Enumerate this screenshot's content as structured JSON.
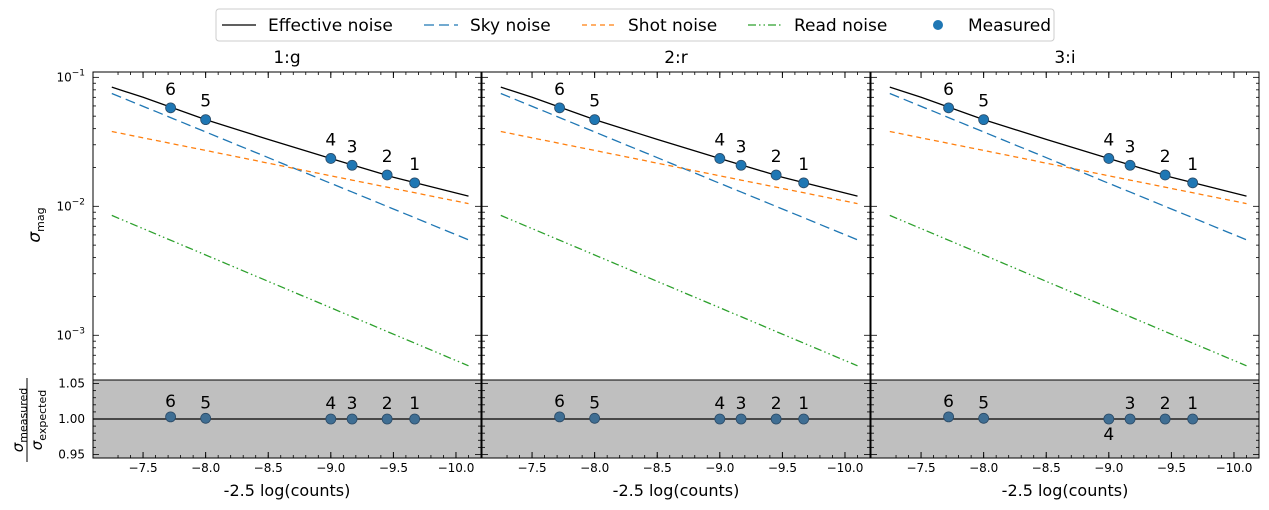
{
  "legend": {
    "placement": "top-center",
    "entries": [
      {
        "label": "Effective noise",
        "color": "#000000",
        "style": "solid"
      },
      {
        "label": "Sky noise",
        "color": "#1f77b4",
        "style": "dashed"
      },
      {
        "label": "Shot noise",
        "color": "#ff7f0e",
        "style": "short-dashed"
      },
      {
        "label": "Read noise",
        "color": "#2ca02c",
        "style": "dash-dot-dot"
      },
      {
        "label": "Measured",
        "color": "#1f77b4",
        "style": "marker"
      }
    ]
  },
  "xlabel": "-2.5 log(counts)",
  "top_ylabel": "σ",
  "top_ylabel_sub": "mag",
  "bottom_ylabel_num": "σ",
  "bottom_ylabel_num_sub": "measured",
  "bottom_ylabel_den": "σ",
  "bottom_ylabel_den_sub": "expected",
  "panels": [
    {
      "title": "1:g",
      "labels_below": []
    },
    {
      "title": "2:r",
      "labels_below": []
    },
    {
      "title": "3:i",
      "labels_below": [
        "4"
      ]
    }
  ],
  "chart_data": {
    "type": "line",
    "x_axis": {
      "ticks": [
        -7.5,
        -8.0,
        -8.5,
        -9.0,
        -9.5,
        -10.0
      ],
      "tick_labels": [
        "−7.5",
        "−8.0",
        "−8.5",
        "−9.0",
        "−9.5",
        "−10.0"
      ],
      "xlim": [
        -7.1,
        -10.2
      ],
      "direction": "decreasing to the right"
    },
    "top_y_axis": {
      "scale": "log",
      "ylim": [
        0.00045,
        0.11
      ],
      "ticks": [
        0.001,
        0.01,
        0.1
      ]
    },
    "bottom_y_axis": {
      "scale": "linear",
      "ylim": [
        0.945,
        1.055
      ],
      "ticks": [
        0.95,
        1.0,
        1.05
      ],
      "tick_labels": [
        "0.95",
        "1.00",
        "1.05"
      ],
      "band": [
        0.945,
        1.055
      ],
      "band_color": "#bfbfbf",
      "reference_line": 1.0
    },
    "curves_x_range": [
      -7.25,
      -10.1
    ],
    "series": [
      {
        "name": "Effective noise",
        "x": [
          -7.25,
          -7.5,
          -8.0,
          -8.5,
          -9.0,
          -9.5,
          -10.1
        ],
        "values": [
          0.084,
          0.07,
          0.047,
          0.033,
          0.0235,
          0.0168,
          0.012
        ]
      },
      {
        "name": "Sky noise",
        "x": [
          -7.25,
          -10.1
        ],
        "values": [
          0.075,
          0.0055
        ]
      },
      {
        "name": "Shot noise",
        "x": [
          -7.25,
          -10.1
        ],
        "values": [
          0.038,
          0.0105
        ]
      },
      {
        "name": "Read noise",
        "x": [
          -7.25,
          -10.1
        ],
        "values": [
          0.0085,
          0.00058
        ]
      }
    ],
    "measured": [
      {
        "label": "6",
        "x": -7.72,
        "sigma": 0.058,
        "ratio": 1.003
      },
      {
        "label": "5",
        "x": -8.0,
        "sigma": 0.047,
        "ratio": 1.001
      },
      {
        "label": "4",
        "x": -9.0,
        "sigma": 0.0235,
        "ratio": 1.0
      },
      {
        "label": "3",
        "x": -9.17,
        "sigma": 0.0208,
        "ratio": 1.0
      },
      {
        "label": "2",
        "x": -9.45,
        "sigma": 0.0175,
        "ratio": 1.0
      },
      {
        "label": "1",
        "x": -9.67,
        "sigma": 0.0152,
        "ratio": 1.0
      }
    ],
    "panel_offsets": [
      0,
      0,
      0
    ]
  }
}
